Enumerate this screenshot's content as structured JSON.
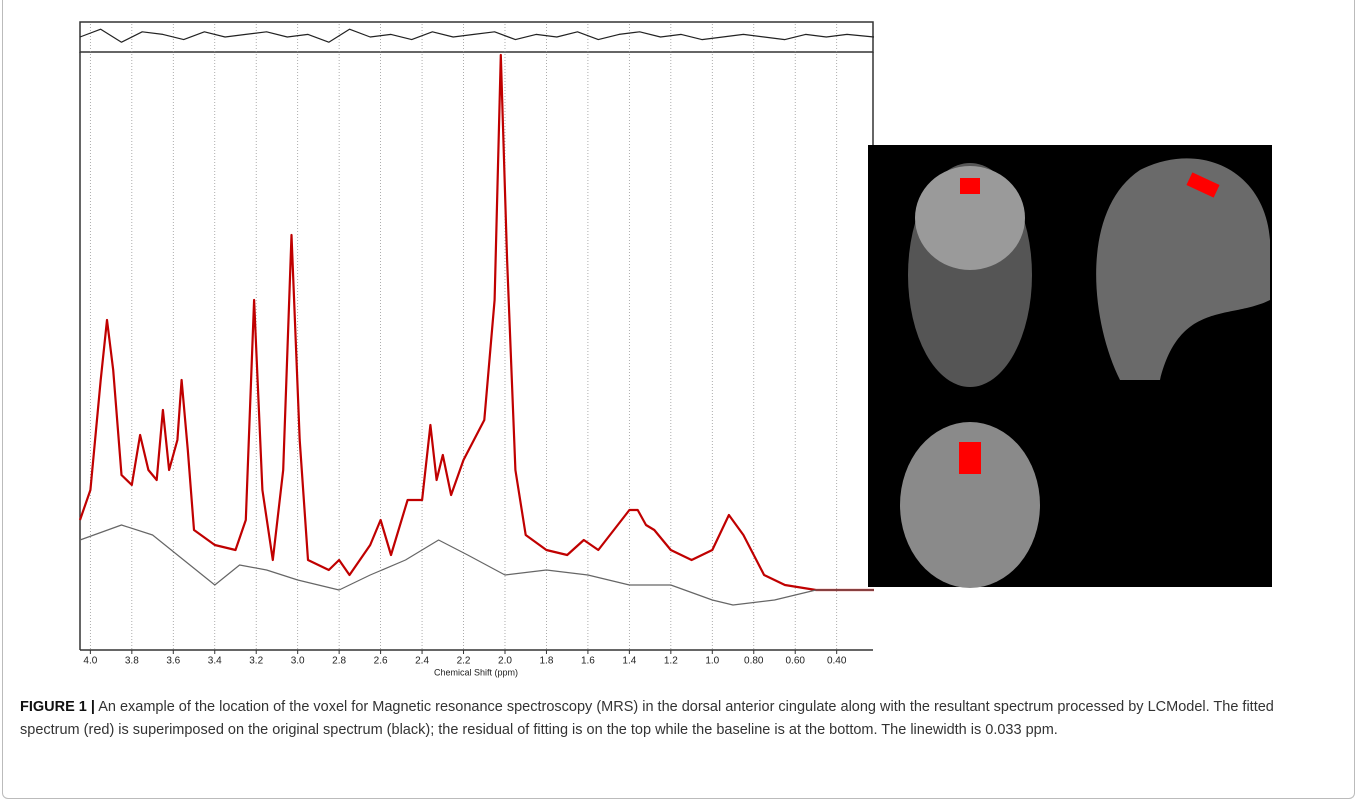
{
  "chart_data": {
    "type": "line",
    "x_label": "Chemical Shift (ppm)",
    "xlim": [
      4.05,
      0.22
    ],
    "xticks": [
      {
        "value": 4.0,
        "label": "4.0"
      },
      3.8,
      3.6,
      3.4,
      3.2,
      {
        "value": 3.0,
        "label": "3.0"
      },
      2.8,
      2.6,
      2.4,
      2.2,
      {
        "value": 2.0,
        "label": "2.0"
      },
      1.8,
      1.6,
      1.4,
      1.2,
      {
        "value": 1.0,
        "label": "1.0"
      },
      {
        "value": 0.8,
        "label": "0.80"
      },
      {
        "value": 0.6,
        "label": "0.60"
      },
      {
        "value": 0.4,
        "label": "0.40"
      }
    ],
    "ylim": [
      0,
      120
    ],
    "grid": true,
    "series": [
      {
        "color": "#c00000",
        "x": [
          4.05,
          4.0,
          3.95,
          3.92,
          3.89,
          3.85,
          3.8,
          3.76,
          3.72,
          3.68,
          3.65,
          3.62,
          3.58,
          3.56,
          3.53,
          3.5,
          3.4,
          3.3,
          3.25,
          3.21,
          3.17,
          3.12,
          3.07,
          3.03,
          2.99,
          2.95,
          2.85,
          2.8,
          2.75,
          2.65,
          2.6,
          2.55,
          2.47,
          2.4,
          2.36,
          2.33,
          2.3,
          2.26,
          2.2,
          2.1,
          2.05,
          2.02,
          1.99,
          1.95,
          1.9,
          1.8,
          1.7,
          1.62,
          1.55,
          1.4,
          1.36,
          1.32,
          1.28,
          1.2,
          1.1,
          1.0,
          0.92,
          0.85,
          0.75,
          0.65,
          0.5,
          0.22
        ],
        "values": [
          26,
          32,
          54,
          66,
          56,
          35,
          33,
          43,
          36,
          34,
          48,
          36,
          42,
          54,
          40,
          24,
          21,
          20,
          26,
          70,
          32,
          18,
          36,
          83,
          42,
          18,
          16,
          18,
          15,
          21,
          26,
          19,
          30,
          30,
          45,
          34,
          39,
          31,
          38,
          46,
          70,
          119,
          78,
          36,
          23,
          20,
          19,
          22,
          20,
          28,
          28,
          25,
          24,
          20,
          18,
          20,
          27,
          23,
          15,
          13,
          12,
          12
        ]
      },
      {
        "color": "#666666",
        "x": [
          4.05,
          3.85,
          3.7,
          3.55,
          3.4,
          3.28,
          3.15,
          3.0,
          2.8,
          2.65,
          2.48,
          2.32,
          2.18,
          2.0,
          1.8,
          1.6,
          1.4,
          1.2,
          1.0,
          0.9,
          0.7,
          0.5,
          0.22
        ],
        "values": [
          22,
          25,
          23,
          18,
          13,
          17,
          16,
          14,
          12,
          15,
          18,
          22,
          19,
          15,
          16,
          15,
          13,
          13,
          10,
          9,
          10,
          12,
          12
        ]
      }
    ],
    "residual": {
      "color": "#222222",
      "ylim": [
        -5,
        5
      ],
      "x": [
        4.05,
        3.95,
        3.85,
        3.75,
        3.65,
        3.55,
        3.45,
        3.35,
        3.25,
        3.15,
        3.05,
        2.95,
        2.85,
        2.75,
        2.65,
        2.55,
        2.45,
        2.35,
        2.25,
        2.15,
        2.05,
        1.95,
        1.85,
        1.75,
        1.65,
        1.55,
        1.45,
        1.35,
        1.25,
        1.15,
        1.05,
        0.95,
        0.85,
        0.75,
        0.65,
        0.55,
        0.45,
        0.35,
        0.22
      ],
      "values": [
        0,
        3,
        -2,
        2,
        1,
        -1,
        2,
        0,
        1,
        2,
        0,
        1,
        -2,
        3,
        0,
        1,
        -1,
        2,
        0,
        1,
        2,
        -1,
        1,
        0,
        2,
        -1,
        1,
        2,
        0,
        1,
        -1,
        0,
        1,
        0,
        -1,
        1,
        0,
        1,
        0
      ]
    }
  },
  "caption": {
    "label": "FIGURE 1 |",
    "text": "An example of the location of the voxel for Magnetic resonance spectroscopy (MRS) in the dorsal anterior cingulate along with the resultant spectrum processed by LCModel. The fitted spectrum (red) is superimposed on the original spectrum (black); the residual of fitting is on the top while the baseline is at the bottom. The linewidth is 0.033 ppm."
  }
}
